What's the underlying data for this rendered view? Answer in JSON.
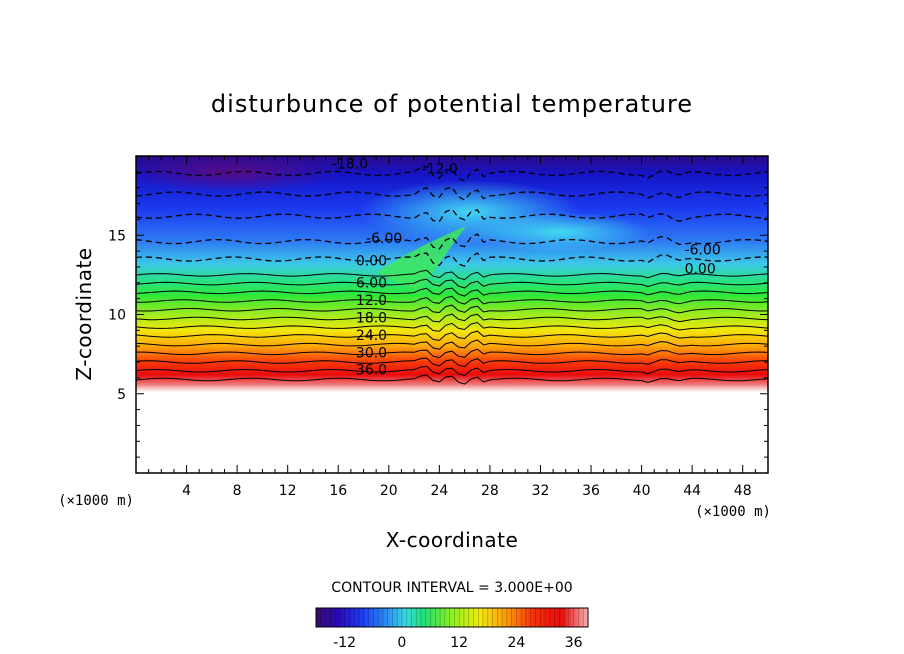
{
  "chart_data": {
    "type": "heatmap",
    "title": "disturbunce of potential temperature",
    "xlabel": "X-coordinate",
    "ylabel": "Z-coordinate",
    "x_unit": "(×1000 m)",
    "y_unit": "(×1000 m)",
    "xlim": [
      0,
      50
    ],
    "ylim": [
      0,
      20
    ],
    "x_ticks": [
      4,
      8,
      12,
      16,
      20,
      24,
      28,
      32,
      36,
      40,
      44,
      48
    ],
    "y_ticks": [
      5,
      10,
      15
    ],
    "contour_interval": "CONTOUR INTERVAL = 3.000E+00",
    "contour_labels": [
      {
        "text": "-18.0",
        "x": 15.5,
        "z": 19.2
      },
      {
        "text": "-12.0",
        "x": 22.6,
        "z": 18.9
      },
      {
        "text": "-6.00",
        "x": 18.2,
        "z": 14.5
      },
      {
        "text": "0.00",
        "x": 17.4,
        "z": 13.1
      },
      {
        "text": "-6.00",
        "x": 43.4,
        "z": 13.8
      },
      {
        "text": "0.00",
        "x": 43.4,
        "z": 12.6
      },
      {
        "text": "6.00",
        "x": 17.4,
        "z": 11.7
      },
      {
        "text": "12.0",
        "x": 17.4,
        "z": 10.6
      },
      {
        "text": "18.0",
        "x": 17.4,
        "z": 9.5
      },
      {
        "text": "24.0",
        "x": 17.4,
        "z": 8.4
      },
      {
        "text": "30.0",
        "x": 17.4,
        "z": 7.3
      },
      {
        "text": "36.0",
        "x": 17.4,
        "z": 6.2
      }
    ],
    "colorbar": {
      "range": [
        -18,
        39
      ],
      "ticks": [
        "-12",
        "0",
        "12",
        "24",
        "36"
      ],
      "tick_values": [
        -12,
        0,
        12,
        24,
        36
      ]
    },
    "grid": false
  }
}
